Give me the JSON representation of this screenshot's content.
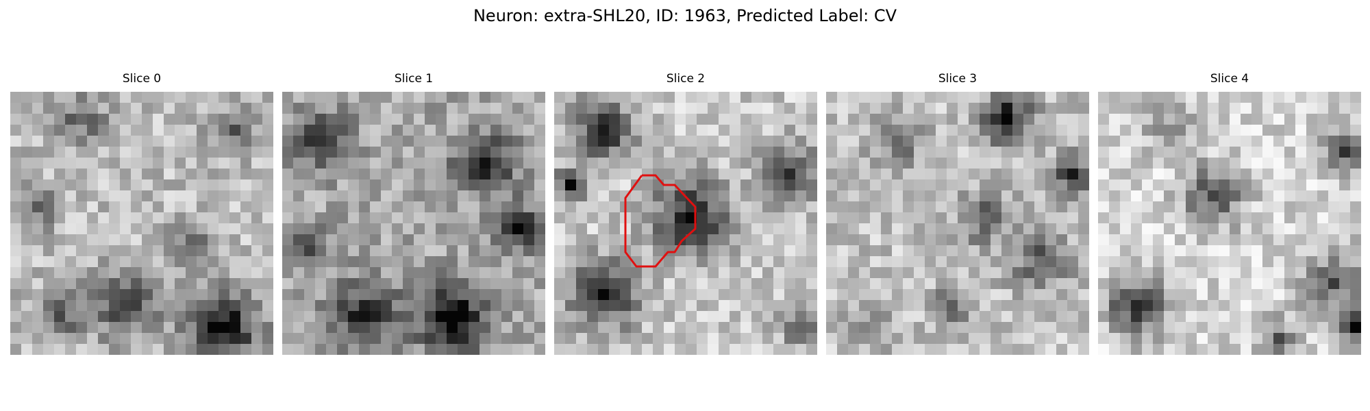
{
  "figure": {
    "title": "Neuron: extra-SHL20, ID: 1963, Predicted Label: CV"
  },
  "panels": [
    {
      "title": "Slice 0",
      "seed": 11,
      "has_contour": false
    },
    {
      "title": "Slice 1",
      "seed": 29,
      "has_contour": false
    },
    {
      "title": "Slice 2",
      "seed": 47,
      "has_contour": true
    },
    {
      "title": "Slice 3",
      "seed": 83,
      "has_contour": false
    },
    {
      "title": "Slice 4",
      "seed": 97,
      "has_contour": false
    }
  ],
  "colormap": "gray",
  "contour_color": "#e01010"
}
